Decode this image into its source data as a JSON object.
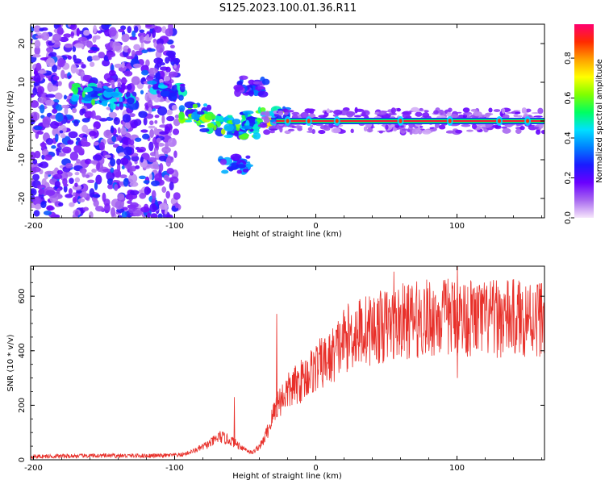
{
  "title": "S125.2023.100.01.36.R11",
  "colorbar": {
    "label": "Normalized spectral amplitude",
    "ticks": [
      "0.0",
      "0.2",
      "0.4",
      "0.6",
      "0.8"
    ],
    "tick_values": [
      0.0,
      0.2,
      0.4,
      0.6,
      0.8
    ],
    "range": [
      0.0,
      0.97
    ],
    "colors": [
      "#f6e6fb",
      "#a868f0",
      "#6a00ff",
      "#1a1aff",
      "#0080ff",
      "#00e0ff",
      "#00ff60",
      "#7fff00",
      "#ffff00",
      "#ffa000",
      "#ff2a00",
      "#ff0070"
    ]
  },
  "chart_data": [
    {
      "type": "heatmap",
      "xlabel": "Height of straight line (km)",
      "ylabel": "Frequency (Hz)",
      "xlim": [
        -202,
        162
      ],
      "ylim": [
        -25,
        25
      ],
      "xticks": [
        -200,
        -100,
        0,
        100
      ],
      "xtick_labels": [
        "-200",
        "-100",
        "0",
        "100"
      ],
      "yticks": [
        -20,
        -10,
        0,
        10,
        20
      ],
      "ytick_labels": [
        "-20",
        "-10",
        "0",
        "10",
        "20"
      ],
      "grid": false,
      "features": {
        "noise_region_x": [
          -202,
          -98
        ],
        "tone_frequency_hz": 0,
        "tone_start_km": -28,
        "tone_end_km": 162,
        "tone_amplitude": 0.95,
        "arc_clusters": [
          {
            "x": -160,
            "y": 7,
            "amp": 0.55
          },
          {
            "x": -140,
            "y": 6,
            "amp": 0.5
          },
          {
            "x": -105,
            "y": 8,
            "amp": 0.45
          },
          {
            "x": -85,
            "y": 2,
            "amp": 0.6
          },
          {
            "x": -70,
            "y": -1,
            "amp": 0.65
          },
          {
            "x": -52,
            "y": -2,
            "amp": 0.6
          },
          {
            "x": -40,
            "y": 0,
            "amp": 0.55
          },
          {
            "x": -30,
            "y": 1,
            "amp": 0.7
          },
          {
            "x": -58,
            "y": -11,
            "amp": 0.4
          },
          {
            "x": -45,
            "y": 9,
            "amp": 0.35
          }
        ],
        "tone_bright_spots": [
          -20,
          -5,
          15,
          60,
          95,
          130,
          150
        ]
      }
    },
    {
      "type": "line",
      "xlabel": "Height of straight line (km)",
      "ylabel": "SNR (10 * v/v)",
      "xlim": [
        -202,
        162
      ],
      "ylim": [
        0,
        710
      ],
      "xticks": [
        -200,
        -100,
        0,
        100
      ],
      "xtick_labels": [
        "-200",
        "-100",
        "0",
        "100"
      ],
      "yticks": [
        0,
        200,
        400,
        600
      ],
      "ytick_labels": [
        "0",
        "200",
        "400",
        "600"
      ],
      "grid": false,
      "line_color": "#e8302a",
      "profile": {
        "x": [
          -202,
          -150,
          -110,
          -95,
          -85,
          -75,
          -68,
          -60,
          -52,
          -45,
          -38,
          -33,
          -28,
          -22,
          -15,
          -8,
          0,
          10,
          20,
          30,
          45,
          60,
          80,
          100,
          120,
          140,
          162
        ],
        "y": [
          12,
          15,
          15,
          18,
          35,
          60,
          85,
          70,
          45,
          25,
          60,
          120,
          200,
          240,
          270,
          300,
          340,
          370,
          440,
          470,
          485,
          505,
          520,
          525,
          515,
          520,
          525
        ],
        "spikes": [
          {
            "x": -58,
            "y": 230
          },
          {
            "x": -28,
            "y": 535
          },
          {
            "x": 55,
            "y": 690
          },
          {
            "x": 100,
            "y": 710
          },
          {
            "x": 100,
            "y": 300
          },
          {
            "x": 150,
            "y": 620
          }
        ]
      }
    }
  ]
}
